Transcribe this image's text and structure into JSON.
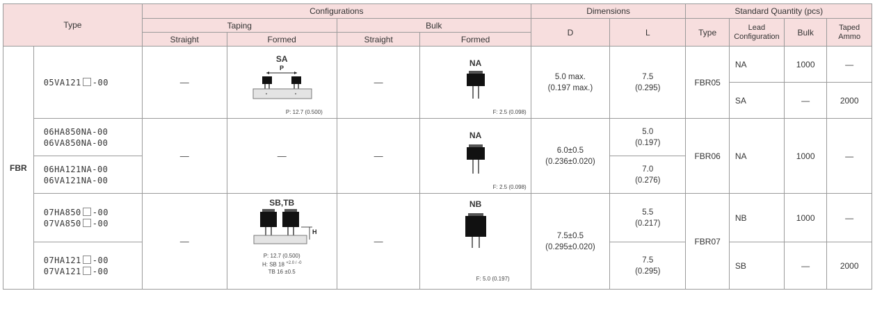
{
  "header": {
    "type": "Type",
    "configurations": "Configurations",
    "dimensions": "Dimensions",
    "standard_quantity": "Standard Quantity (pcs)",
    "taping": "Taping",
    "bulk": "Bulk",
    "straight": "Straight",
    "formed": "Formed",
    "d": "D",
    "l": "L",
    "qty_type": "Type",
    "lead_config_1": "Lead",
    "lead_config_2": "Configuration",
    "qty_bulk": "Bulk",
    "taped_ammo_1": "Taped",
    "taped_ammo_2": "Ammo"
  },
  "series": "FBR",
  "dash": "—",
  "groups": [
    {
      "parts": [
        "05VA121",
        "-00"
      ],
      "taping_formed": {
        "code": "SA",
        "pitch_label": "P",
        "caption": "P: 12.7 (0.500)"
      },
      "bulk_formed": {
        "code": "NA",
        "caption": "F: 2.5 (0.098)"
      },
      "d": [
        "5.0 max.",
        "(0.197 max.)"
      ],
      "l": [
        "7.5",
        "(0.295)"
      ],
      "qty_type": "FBR05",
      "rows": [
        {
          "lead": "NA",
          "bulk": "1000",
          "ammo": "—"
        },
        {
          "lead": "SA",
          "bulk": "—",
          "ammo": "2000"
        }
      ]
    },
    {
      "parts_a": [
        "06HA850NA-00",
        "06VA850NA-00"
      ],
      "parts_b": [
        "06HA121NA-00",
        "06VA121NA-00"
      ],
      "bulk_formed": {
        "code": "NA",
        "caption": "F: 2.5 (0.098)"
      },
      "d": [
        "6.0±0.5",
        "(0.236±0.020)"
      ],
      "l_a": [
        "5.0",
        "(0.197)"
      ],
      "l_b": [
        "7.0",
        "(0.276)"
      ],
      "qty_type": "FBR06",
      "lead": "NA",
      "bulk": "1000",
      "ammo": "—"
    },
    {
      "parts_a": [
        [
          "07HA850",
          "-00"
        ],
        [
          "07VA850",
          "-00"
        ]
      ],
      "parts_b": [
        [
          "07HA121",
          "-00"
        ],
        [
          "07VA121",
          "-00"
        ]
      ],
      "taping_formed": {
        "code": "SB,TB",
        "h_label": "H",
        "caption_p": "P: 12.7 (0.500)",
        "caption_h1": "H: SB 18",
        "caption_h1_tol": "+2.0 / -0",
        "caption_h2": "TB 16 ±0.5"
      },
      "bulk_formed": {
        "code": "NB",
        "caption": "F: 5.0 (0.197)"
      },
      "d": [
        "7.5±0.5",
        "(0.295±0.020)"
      ],
      "l_a": [
        "5.5",
        "(0.217)"
      ],
      "l_b": [
        "7.5",
        "(0.295)"
      ],
      "qty_type": "FBR07",
      "rows": [
        {
          "lead": "NB",
          "bulk": "1000",
          "ammo": "—"
        },
        {
          "lead": "SB",
          "bulk": "—",
          "ammo": "2000"
        }
      ]
    }
  ]
}
